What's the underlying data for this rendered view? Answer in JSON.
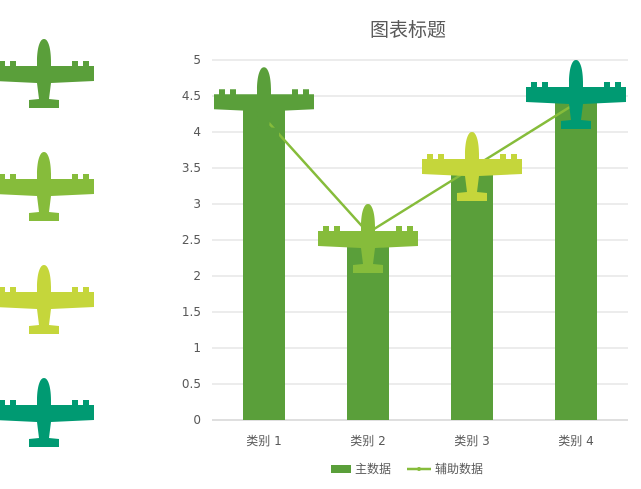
{
  "chart_data": {
    "type": "bar",
    "title": "图表标题",
    "categories": [
      "类别 1",
      "类别 2",
      "类别 3",
      "类别 4"
    ],
    "series": [
      {
        "name": "主数据",
        "kind": "bar",
        "values": [
          4.4,
          2.5,
          3.5,
          4.5
        ],
        "color": "#5a9f3a"
      },
      {
        "name": "辅助数据",
        "kind": "line",
        "values": [
          4.2,
          2.6,
          3.5,
          4.4
        ],
        "color": "#86bc3b"
      }
    ],
    "marker_colors": [
      "#5a9f3a",
      "#86bc3b",
      "#c5d63b",
      "#009a72"
    ],
    "ylim": [
      0,
      5
    ],
    "yticks": [
      "0",
      "0.5",
      "1",
      "1.5",
      "2",
      "2.5",
      "3",
      "3.5",
      "4",
      "4.5",
      "5"
    ],
    "grid": true,
    "legend": "bottom",
    "side_icons": [
      {
        "icon": "airplane-icon",
        "color": "#5a9f3a"
      },
      {
        "icon": "airplane-icon",
        "color": "#86bc3b"
      },
      {
        "icon": "airplane-icon",
        "color": "#c5d63b"
      },
      {
        "icon": "airplane-icon",
        "color": "#009a72"
      }
    ]
  }
}
